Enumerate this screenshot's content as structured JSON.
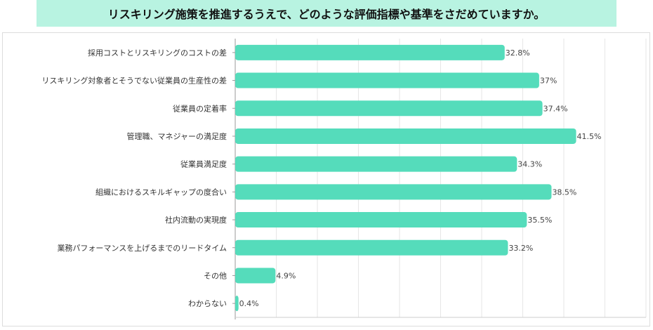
{
  "chart_data": {
    "type": "bar",
    "orientation": "horizontal",
    "title": "リスキリング施策を推進するうえで、どのような評価指標や基準をさだめていますか。",
    "categories": [
      "採用コストとリスキリングのコストの差",
      "リスキリング対象者とそうでない従業員の生産性の差",
      "従業員の定着率",
      "管理職、マネジャーの満足度",
      "従業員満足度",
      "組織におけるスキルギャップの度合い",
      "社内流動の実現度",
      "業務パフォーマンスを上げるまでのリードタイム",
      "その他",
      "わからない"
    ],
    "values": [
      32.8,
      37,
      37.4,
      41.5,
      34.3,
      38.5,
      35.5,
      33.2,
      4.9,
      0.4
    ],
    "value_labels": [
      "32.8%",
      "37%",
      "37.4%",
      "41.5%",
      "34.3%",
      "38.5%",
      "35.5%",
      "33.2%",
      "4.9%",
      "0.4%"
    ],
    "xlim": [
      0,
      50
    ],
    "grid": true,
    "colors": {
      "bar": "#55dcbb",
      "title_band": "#b8f3e1",
      "grid": "#e6e6e6"
    }
  }
}
